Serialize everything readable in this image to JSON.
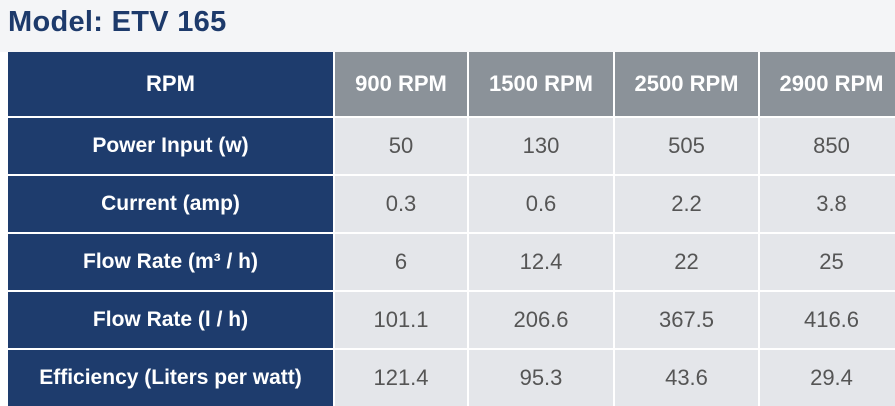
{
  "header": {
    "title": "Model: ETV 165"
  },
  "table": {
    "columns": [
      "RPM",
      "900 RPM",
      "1500 RPM",
      "2500 RPM",
      "2900 RPM"
    ],
    "rows": [
      [
        "Power Input (w)",
        "50",
        "130",
        "505",
        "850"
      ],
      [
        "Current (amp)",
        "0.3",
        "0.6",
        "2.2",
        "3.8"
      ],
      [
        "Flow Rate (m³  / h)",
        "6",
        "12.4",
        "22",
        "25"
      ],
      [
        "Flow Rate (l / h)",
        "101.1",
        "206.6",
        "367.5",
        "416.6"
      ],
      [
        "Efficiency (Liters per watt)",
        "121.4",
        "95.3",
        "43.6",
        "29.4"
      ]
    ]
  }
}
